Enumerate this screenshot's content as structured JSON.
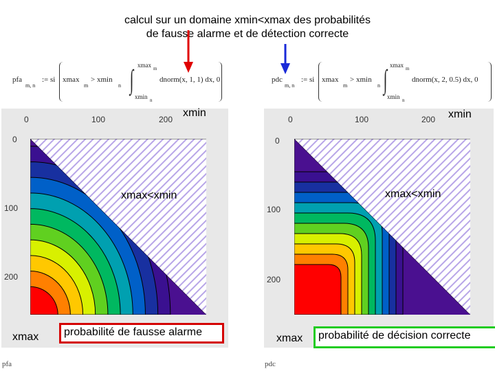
{
  "title": {
    "line1": "calcul sur un domaine xmin<xmax des probabilités",
    "line2": "de fausse alarme et de détection correcte"
  },
  "formulas": {
    "left": {
      "lhs": "pfa",
      "lhs_sub": "m, n",
      "assign": ":= si",
      "cond": "xmax",
      "cond_sub1": "m",
      "cond_op": "> xmin",
      "cond_sub2": "n",
      "upper": "xmax",
      "upper_sub": "m",
      "lower": "xmin",
      "lower_sub": "n",
      "integrand": "dnorm(x, 1, 1) dx, 0"
    },
    "right": {
      "lhs": "pdc",
      "lhs_sub": "m, n",
      "assign": ":= si",
      "cond": "xmax",
      "cond_sub1": "m",
      "cond_op": "> xmin",
      "cond_sub2": "n",
      "upper": "xmax",
      "upper_sub": "m",
      "lower": "xmin",
      "lower_sub": "n",
      "integrand": "dnorm(x, 2, 0.5) dx, 0"
    }
  },
  "arrow_colors": {
    "left": "#e00000",
    "right": "#1a2ad8"
  },
  "plots": {
    "left": {
      "axis_top": "xmin",
      "axis_left": "xmax",
      "region_label": "xmax<xmin",
      "caption": "probabilité de fausse alarme",
      "caption_border": "#d40000",
      "footer": "pfa",
      "x_ticks": [
        "0",
        "100",
        "200"
      ],
      "y_ticks": [
        "0",
        "100",
        "200"
      ]
    },
    "right": {
      "axis_top": "xmin",
      "axis_left": "xmax",
      "region_label": "xmax<xmin",
      "caption": "probabilité de décision correcte",
      "caption_border": "#22cc22",
      "footer": "pdc",
      "x_ticks": [
        "0",
        "100",
        "200"
      ],
      "y_ticks": [
        "0",
        "100",
        "200"
      ]
    }
  },
  "contour_colors": [
    "#ff0000",
    "#ff8000",
    "#ffc800",
    "#d8f000",
    "#60d020",
    "#00b860",
    "#00a0b0",
    "#0060c8",
    "#1830a0",
    "#3a1090",
    "#4a1090"
  ],
  "hatch_color": "#b8a6e8"
}
